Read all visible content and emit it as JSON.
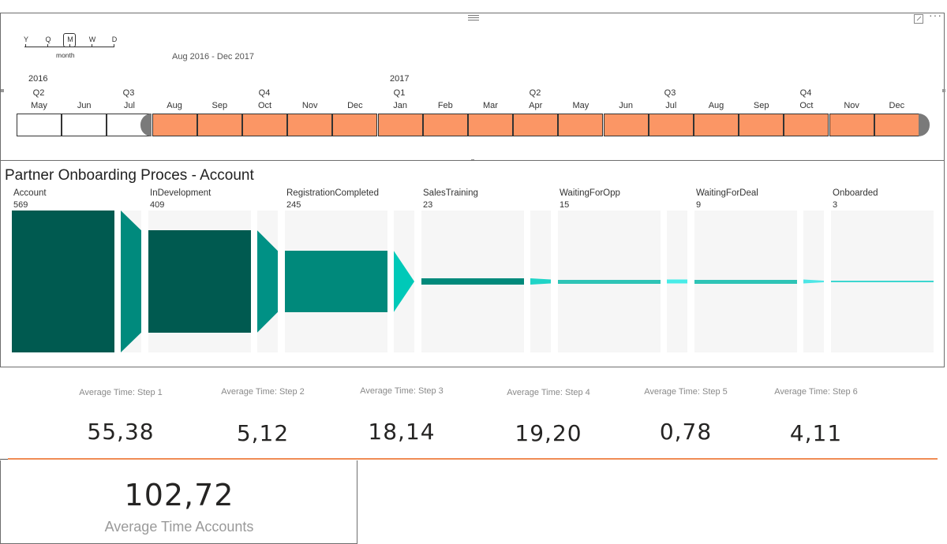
{
  "timeline": {
    "granularity": {
      "letters": [
        "Y",
        "Q",
        "M",
        "W",
        "D"
      ],
      "selected": "M",
      "label": "month"
    },
    "range_label": "Aug 2016 - Dec 2017",
    "years": [
      "2016",
      "2017"
    ],
    "quarters": [
      "Q2",
      "Q3",
      "Q4",
      "Q1",
      "Q2",
      "Q3",
      "Q4"
    ],
    "months": [
      "May",
      "Jun",
      "Jul",
      "Aug",
      "Sep",
      "Oct",
      "Nov",
      "Dec",
      "Jan",
      "Feb",
      "Mar",
      "Apr",
      "May",
      "Jun",
      "Jul",
      "Aug",
      "Sep",
      "Oct",
      "Nov",
      "Dec"
    ],
    "selected_range": "Aug 2016 - Dec 2017",
    "colors": {
      "selected": "#fb9665",
      "handle": "#7a7a7a"
    }
  },
  "funnel": {
    "title": "Partner Onboarding Proces - Account",
    "stages": [
      {
        "name": "Account",
        "count": "569",
        "value": 569,
        "color": "#005a50"
      },
      {
        "name": "InDevelopment",
        "count": "409",
        "value": 409,
        "color": "#005a50"
      },
      {
        "name": "RegistrationCompleted",
        "count": "245",
        "value": 245,
        "color": "#00897b"
      },
      {
        "name": "SalesTraining",
        "count": "23",
        "value": 23,
        "color": "#00897b"
      },
      {
        "name": "WaitingForOpp",
        "count": "15",
        "value": 15,
        "color": "#2ec4b6"
      },
      {
        "name": "WaitingForDeal",
        "count": "9",
        "value": 9,
        "color": "#2ec4b6"
      },
      {
        "name": "Onboarded",
        "count": "3",
        "value": 3,
        "color": "#3dd6d0"
      }
    ],
    "connector_colors": [
      "#008a7d",
      "#009185",
      "#00c9b8",
      "#20d4c7",
      "#48ece8",
      "#4ee6e6"
    ]
  },
  "kpis": [
    {
      "title": "Average Time: Step 1",
      "value": "55,38"
    },
    {
      "title": "Average Time: Step 2",
      "value": "5,12"
    },
    {
      "title": "Average Time: Step 3",
      "value": "18,14"
    },
    {
      "title": "Average Time: Step 4",
      "value": "19,20"
    },
    {
      "title": "Average Time: Step 5",
      "value": "0,78"
    },
    {
      "title": "Average Time: Step 6",
      "value": "4,11"
    }
  ],
  "total": {
    "value": "102,72",
    "label": "Average Time Accounts"
  },
  "colors": {
    "accent_rule": "#f08c55"
  }
}
